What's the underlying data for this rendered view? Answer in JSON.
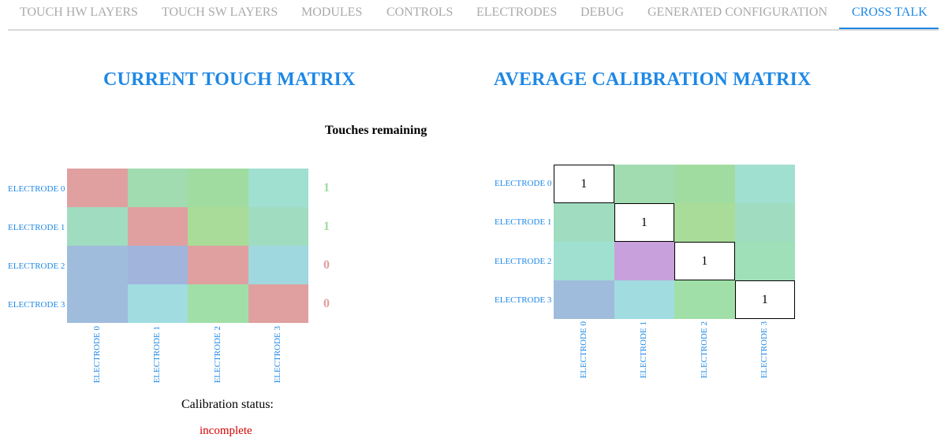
{
  "tabs": [
    {
      "label": "TOUCH HW LAYERS",
      "active": false
    },
    {
      "label": "TOUCH SW LAYERS",
      "active": false
    },
    {
      "label": "MODULES",
      "active": false
    },
    {
      "label": "CONTROLS",
      "active": false
    },
    {
      "label": "ELECTRODES",
      "active": false
    },
    {
      "label": "DEBUG",
      "active": false
    },
    {
      "label": "GENERATED CONFIGURATION",
      "active": false
    },
    {
      "label": "CROSS TALK",
      "active": true
    }
  ],
  "current_matrix": {
    "title": "CURRENT TOUCH MATRIX",
    "row_labels": [
      "ELECTRODE 0",
      "ELECTRODE 1",
      "ELECTRODE 2",
      "ELECTRODE 3"
    ],
    "col_labels": [
      "ELECTRODE 0",
      "ELECTRODE 1",
      "ELECTRODE 2",
      "ELECTRODE 3"
    ],
    "cell_colors": [
      [
        "#e0a0a0",
        "#a0dcb0",
        "#a0dca0",
        "#a0e0d0"
      ],
      [
        "#a0dcc0",
        "#e0a0a0",
        "#a8dc98",
        "#a0dcc0"
      ],
      [
        "#a0bcdc",
        "#a0b4dc",
        "#e0a0a0",
        "#a0d8e0"
      ],
      [
        "#a0bcdc",
        "#a0dce0",
        "#a0e0a8",
        "#e0a0a0"
      ]
    ]
  },
  "touches_remaining": {
    "label": "Touches remaining",
    "values": [
      "1",
      "1",
      "0",
      "0"
    ],
    "colors": [
      "#a0dca0",
      "#a0dca0",
      "#e0a0a0",
      "#e0a0a0"
    ]
  },
  "calibration": {
    "label": "Calibration status:",
    "value": "incomplete"
  },
  "average_matrix": {
    "title": "AVERAGE CALIBRATION MATRIX",
    "row_labels": [
      "ELECTRODE 0",
      "ELECTRODE 1",
      "ELECTRODE 2",
      "ELECTRODE 3"
    ],
    "col_labels": [
      "ELECTRODE 0",
      "ELECTRODE 1",
      "ELECTRODE 2",
      "ELECTRODE 3"
    ],
    "cells": [
      [
        "1",
        "",
        "",
        ""
      ],
      [
        "",
        "1",
        "",
        ""
      ],
      [
        "",
        "",
        "1",
        ""
      ],
      [
        "",
        "",
        "",
        "1"
      ]
    ],
    "cell_colors": [
      [
        "#ffffff",
        "#a0dcb0",
        "#a0dca0",
        "#a0e0d0"
      ],
      [
        "#a0dcc0",
        "#ffffff",
        "#a8dc98",
        "#a0dcc0"
      ],
      [
        "#a0e0d0",
        "#c8a0dc",
        "#ffffff",
        "#a0e0b8"
      ],
      [
        "#a0bcdc",
        "#a0dce0",
        "#a0e0a8",
        "#ffffff"
      ]
    ]
  }
}
